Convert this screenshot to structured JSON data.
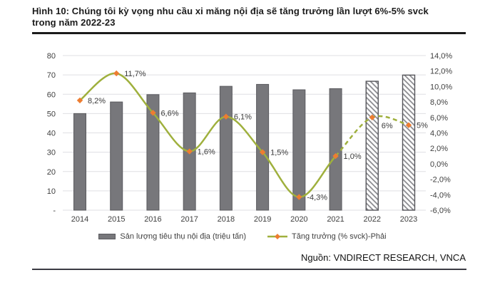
{
  "figure": {
    "title_lines": [
      "Hình 10: Chúng tôi kỳ vọng nhu cầu xi măng nội địa sẽ tăng trưởng lần lượt 6%-5% svck",
      "trong năm 2022-23"
    ],
    "source_label": "Nguồn:",
    "source_value": "VNDIRECT RESEARCH, VNCA"
  },
  "legend": {
    "bars_label": "Sản lượng tiêu thụ nội địa (triệu tấn)",
    "line_label": "Tăng trưởng (% svck)-Phải"
  },
  "colors": {
    "bar_fill": "#77777b",
    "bar_border": "#5b5b5f",
    "hatch_stripe": "#85858a",
    "hatch_border": "#55555a",
    "line": "#9fb03d",
    "marker": "#ed7d31",
    "grid": "#dfdfe3",
    "axis_text": "#3f3f3f",
    "label_text": "#3a3a3a"
  },
  "chart_data": {
    "type": "bar",
    "subtype": "bar+line dual axis",
    "categories": [
      "2014",
      "2015",
      "2016",
      "2017",
      "2018",
      "2019",
      "2020",
      "2021",
      "2022",
      "2023"
    ],
    "series": [
      {
        "name": "Sản lượng tiêu thụ nội địa (triệu tấn)",
        "type": "bar",
        "axis": "left",
        "values": [
          50,
          56,
          59.8,
          60.7,
          64.1,
          65.1,
          62.3,
          62.9,
          66.7,
          69.9
        ],
        "forecast_indices": [
          8,
          9
        ]
      },
      {
        "name": "Tăng trưởng (% svck)-Phải",
        "type": "line",
        "axis": "right",
        "values": [
          8.2,
          11.7,
          6.6,
          1.6,
          6.1,
          1.5,
          -4.3,
          1.0,
          6,
          5
        ],
        "labels": [
          "8,2%",
          "11,7%",
          "6,6%",
          "1,6%",
          "6,1%",
          "1,5%",
          "-4,3%",
          "1,0%",
          "6%",
          "5%"
        ],
        "dashed_from_index": 7
      }
    ],
    "left_axis": {
      "min": 0,
      "max": 80,
      "ticks": [
        "80",
        "70",
        "60",
        "50",
        "40",
        "30",
        "20",
        "10",
        "-"
      ]
    },
    "right_axis": {
      "min": -6,
      "max": 14,
      "ticks": [
        "14,0%",
        "12,0%",
        "10,0%",
        "8,0%",
        "6,0%",
        "4,0%",
        "2,0%",
        "0,0%",
        "-2,0%",
        "-4,0%",
        "-6,0%"
      ]
    },
    "grid": true,
    "legend_position": "bottom",
    "label_offsets": {
      "default": [
        11,
        4
      ],
      "8": [
        13,
        15
      ]
    }
  }
}
